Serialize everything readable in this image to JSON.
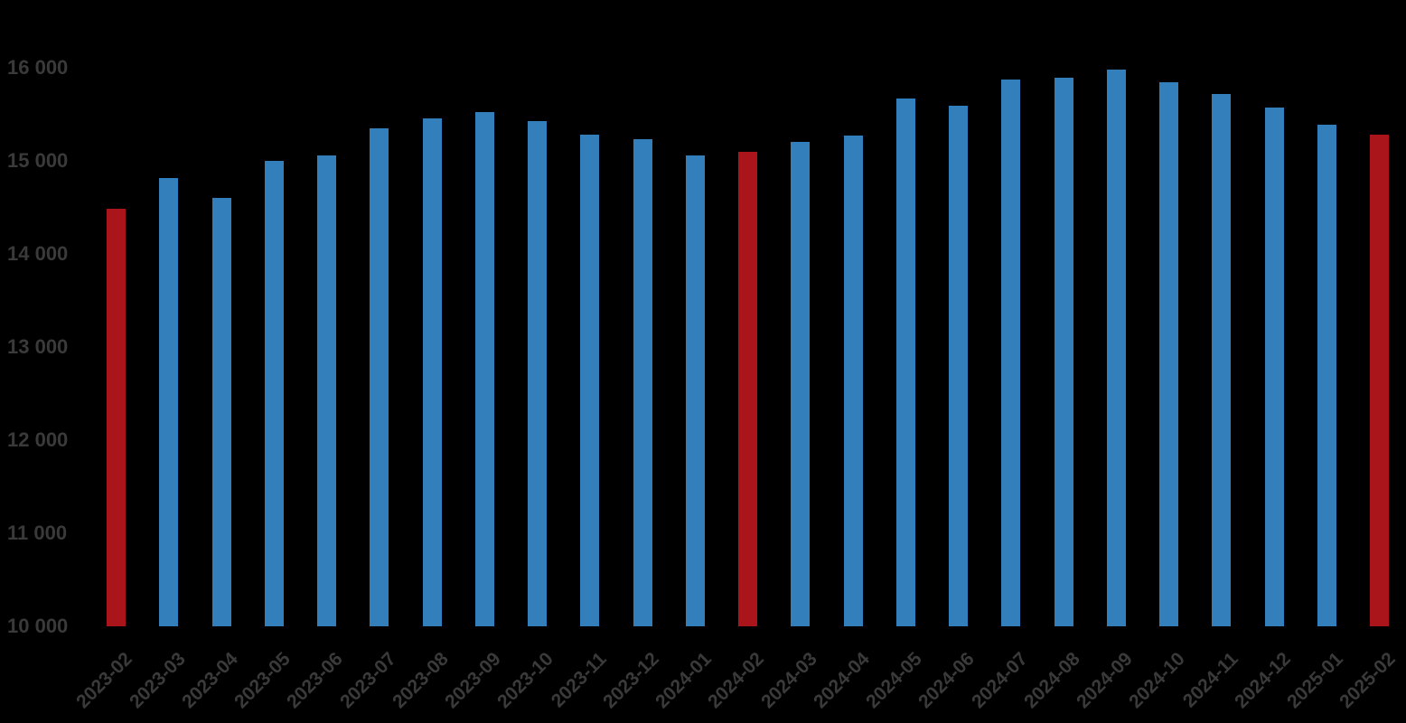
{
  "chart_data": {
    "type": "bar",
    "title": "",
    "xlabel": "",
    "ylabel": "",
    "grid": false,
    "legend": "none",
    "background": "#000000",
    "text_color": "#3A3A3A",
    "bar_color": "#337FBB",
    "highlight_color": "#A9151B",
    "highlight_indices": [
      0,
      12,
      24
    ],
    "x_tick_rotation_deg": 45,
    "ylim": [
      10000,
      16000
    ],
    "yticks": [
      {
        "value": 10000,
        "label": "10 000"
      },
      {
        "value": 11000,
        "label": "11 000"
      },
      {
        "value": 12000,
        "label": "12 000"
      },
      {
        "value": 13000,
        "label": "13 000"
      },
      {
        "value": 14000,
        "label": "14 000"
      },
      {
        "value": 15000,
        "label": "15 000"
      },
      {
        "value": 16000,
        "label": "16 000"
      }
    ],
    "categories": [
      "2023-02",
      "2023-03",
      "2023-04",
      "2023-05",
      "2023-06",
      "2023-07",
      "2023-08",
      "2023-09",
      "2023-10",
      "2023-11",
      "2023-12",
      "2024-01",
      "2024-02",
      "2024-03",
      "2024-04",
      "2024-05",
      "2024-06",
      "2024-07",
      "2024-08",
      "2024-09",
      "2024-10",
      "2024-11",
      "2024-12",
      "2025-01",
      "2025-02"
    ],
    "values": [
      14490,
      14820,
      14600,
      15000,
      15060,
      15350,
      15460,
      15520,
      15430,
      15280,
      15230,
      15060,
      15100,
      15200,
      15270,
      15670,
      15590,
      15870,
      15890,
      15980,
      15840,
      15720,
      15570,
      15390,
      15280
    ]
  }
}
